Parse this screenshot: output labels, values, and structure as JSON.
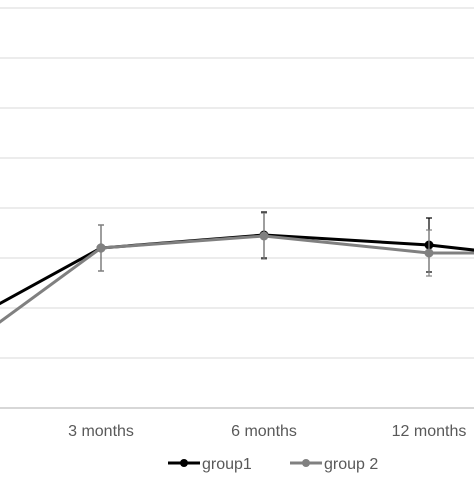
{
  "chart_data": {
    "type": "line",
    "categories": [
      "",
      "3 months",
      "6 months",
      "12 months"
    ],
    "series": [
      {
        "name": "group1",
        "color": "#000000",
        "values": [
          2.7,
          3.6,
          3.73,
          3.63
        ],
        "error": [
          null,
          0.23,
          0.23,
          0.27
        ]
      },
      {
        "name": "group 2",
        "color": "#808080",
        "values": [
          2.4,
          3.6,
          3.72,
          3.55
        ],
        "error": [
          null,
          0.23,
          0.23,
          0.23
        ]
      }
    ],
    "series_tail_value": 3.55,
    "ylim": [
      2.0,
      6.0
    ],
    "y_gridlines": [
      2.0,
      2.5,
      3.0,
      3.5,
      4.0,
      4.5,
      5.0,
      5.5,
      6.0
    ],
    "grid": true,
    "legend": "bottom",
    "title": "",
    "xlabel": "",
    "ylabel": ""
  },
  "legend": {
    "group1": "group1",
    "group2": "group 2"
  }
}
